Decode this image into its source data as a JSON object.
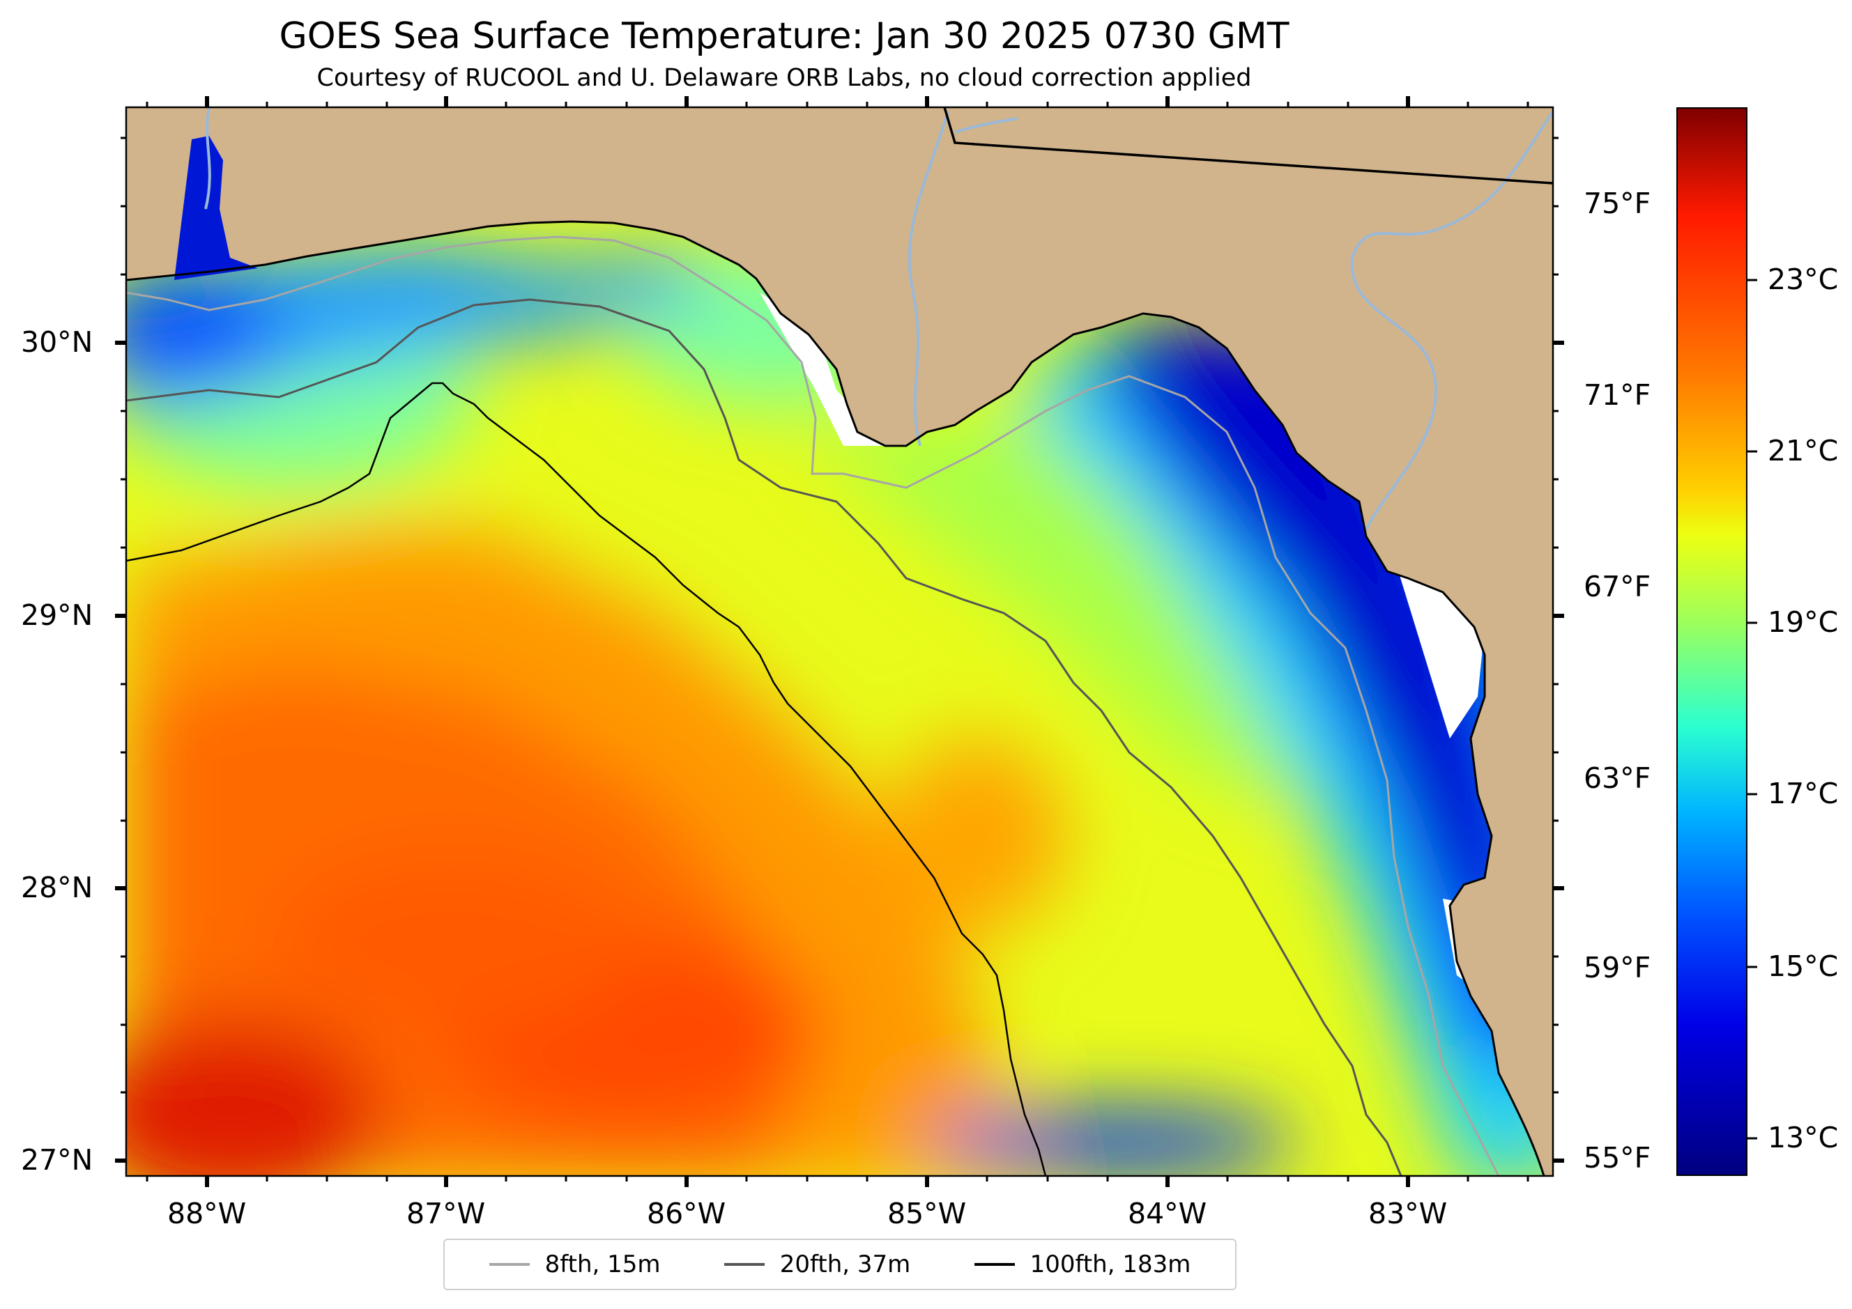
{
  "title": "GOES Sea Surface Temperature: Jan 30 2025 0730 GMT",
  "subtitle": "Courtesy of RUCOOL and U. Delaware ORB Labs, no cloud correction applied",
  "lat_labels": [
    "30°N",
    "29°N",
    "28°N",
    "27°N"
  ],
  "lon_labels": [
    "88°W",
    "87°W",
    "86°W",
    "85°W",
    "84°W",
    "83°W"
  ],
  "fahrenheit_labels": [
    "75°F",
    "71°F",
    "67°F",
    "63°F",
    "59°F",
    "55°F"
  ],
  "colorbar_labels": [
    "23°C",
    "21°C",
    "19°C",
    "17°C",
    "15°C",
    "13°C"
  ],
  "legend": [
    {
      "label": "8fth, 15m",
      "color": "#a6a6a6"
    },
    {
      "label": "20fth, 37m",
      "color": "#555555"
    },
    {
      "label": "100fth, 183m",
      "color": "#000000"
    }
  ],
  "colors": {
    "land": "#d2b48c",
    "no_data": "#ffffff",
    "river": "#9ab9d8",
    "border": "#000000"
  }
}
